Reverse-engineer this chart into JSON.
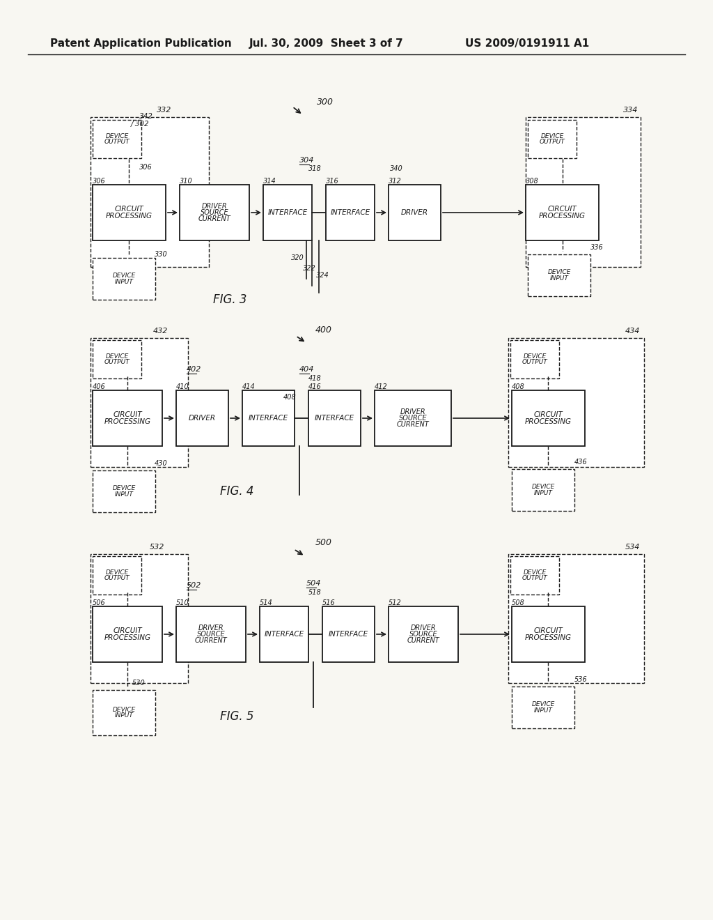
{
  "bg_color": "#f5f5f0",
  "paper_color": "#f8f7f2",
  "ink_color": "#1a1a1a",
  "header_left": "Patent Application Publication",
  "header_mid": "Jul. 30, 2009  Sheet 3 of 7",
  "header_right": "US 2009/0191911 A1"
}
